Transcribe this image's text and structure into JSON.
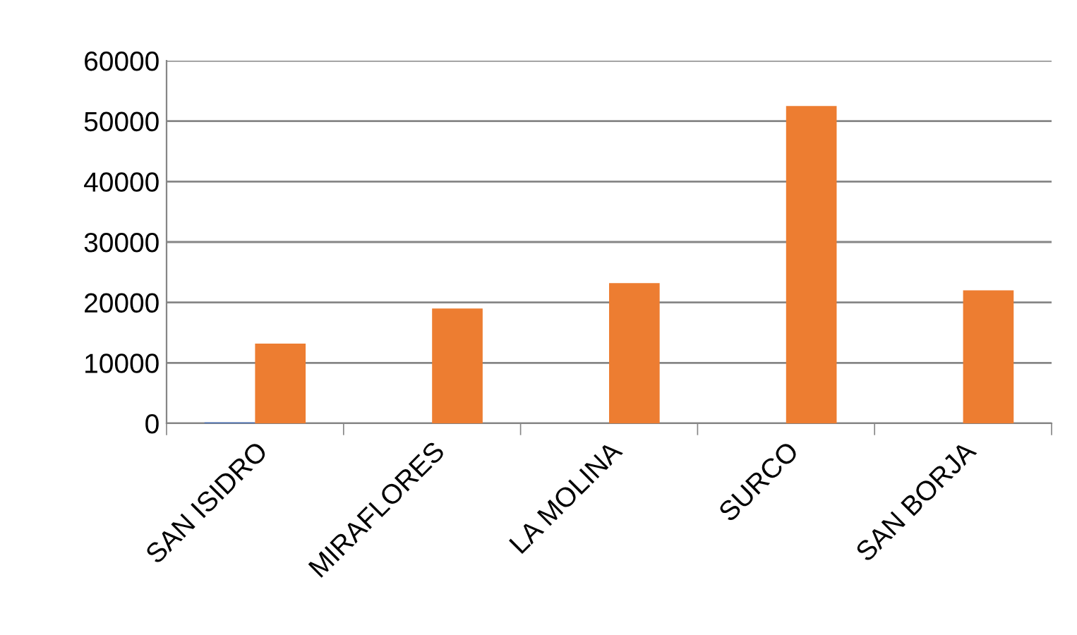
{
  "chart_data": {
    "type": "bar",
    "categories": [
      "SAN ISIDRO",
      "MIRAFLORES",
      "LA MOLINA",
      "SURCO",
      "SAN BORJA"
    ],
    "series": [
      {
        "color": "#4472c4",
        "values": [
          150,
          0,
          0,
          0,
          0
        ]
      },
      {
        "color": "#ed7d31",
        "values": [
          13200,
          19000,
          23200,
          52500,
          22000
        ]
      }
    ],
    "ylim": [
      0,
      60000
    ],
    "yticks": [
      0,
      10000,
      20000,
      30000,
      40000,
      50000,
      60000
    ],
    "grid": "y",
    "legend": false
  }
}
